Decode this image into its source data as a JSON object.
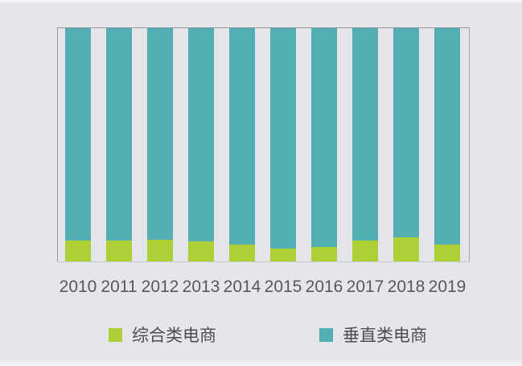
{
  "chart_data": {
    "type": "bar",
    "stacked": true,
    "percent_stacked": true,
    "title": "",
    "xlabel": "",
    "ylabel": "",
    "ylim": [
      0,
      100
    ],
    "grid": false,
    "legend_position": "bottom",
    "categories": [
      "2010",
      "2011",
      "2012",
      "2013",
      "2014",
      "2015",
      "2016",
      "2017",
      "2018",
      "2019"
    ],
    "series": [
      {
        "name": "综合类电商",
        "color": "#aed037",
        "values": [
          9.1,
          8.8,
          9.4,
          8.5,
          7.3,
          5.5,
          6.2,
          8.8,
          10.5,
          7.1
        ]
      },
      {
        "name": "垂直类电商",
        "color": "#53aeb3",
        "values": [
          90.9,
          91.2,
          90.6,
          91.5,
          92.7,
          94.5,
          93.8,
          91.2,
          89.5,
          92.9
        ]
      }
    ]
  },
  "colors": {
    "background": "#e5e6e9",
    "plot_border": "#97989b",
    "axis_label_text": "#57585a",
    "legend_text": "#4c4d4f"
  }
}
